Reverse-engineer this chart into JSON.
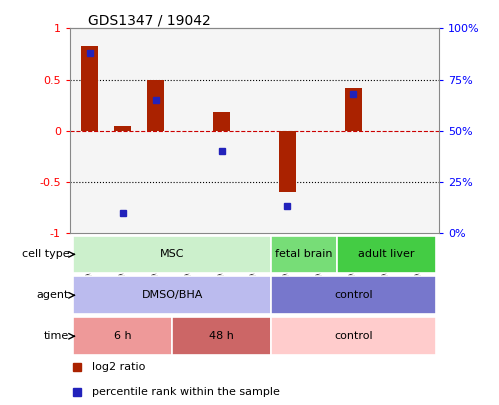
{
  "title": "GDS1347 / 19042",
  "samples": [
    "GSM60436",
    "GSM60437",
    "GSM60438",
    "GSM60440",
    "GSM60442",
    "GSM60444",
    "GSM60433",
    "GSM60434",
    "GSM60448",
    "GSM60450",
    "GSM60451"
  ],
  "log2_ratio": [
    0.83,
    0.05,
    0.5,
    0.0,
    0.18,
    0.0,
    -0.6,
    0.0,
    0.42,
    0.0,
    0.0
  ],
  "percentile": [
    88,
    10,
    65,
    null,
    40,
    null,
    13,
    null,
    68,
    null,
    null
  ],
  "ylim_left": [
    -1,
    1
  ],
  "ylim_right": [
    0,
    100
  ],
  "yticks_left": [
    -1,
    -0.5,
    0,
    0.5,
    1
  ],
  "yticks_right": [
    0,
    25,
    50,
    75,
    100
  ],
  "ytick_labels_left": [
    "-1",
    "-0.5",
    "0",
    "0.5",
    "1"
  ],
  "ytick_labels_right": [
    "0%",
    "25%",
    "50%",
    "75%",
    "100%"
  ],
  "hline_dotted": [
    0.5,
    -0.5
  ],
  "bar_color": "#aa2200",
  "dot_color": "#2222bb",
  "cell_type_groups": [
    {
      "label": "MSC",
      "start": 0,
      "end": 6,
      "color": "#ccf0cc"
    },
    {
      "label": "fetal brain",
      "start": 6,
      "end": 8,
      "color": "#77dd77"
    },
    {
      "label": "adult liver",
      "start": 8,
      "end": 11,
      "color": "#44cc44"
    }
  ],
  "agent_groups": [
    {
      "label": "DMSO/BHA",
      "start": 0,
      "end": 6,
      "color": "#bbbbee"
    },
    {
      "label": "control",
      "start": 6,
      "end": 11,
      "color": "#7777cc"
    }
  ],
  "time_groups": [
    {
      "label": "6 h",
      "start": 0,
      "end": 3,
      "color": "#ee9999"
    },
    {
      "label": "48 h",
      "start": 3,
      "end": 6,
      "color": "#cc6666"
    },
    {
      "label": "control",
      "start": 6,
      "end": 11,
      "color": "#ffcccc"
    }
  ],
  "row_labels": [
    "cell type",
    "agent",
    "time"
  ],
  "legend_items": [
    {
      "color": "#aa2200",
      "label": "log2 ratio"
    },
    {
      "color": "#2222bb",
      "label": "percentile rank within the sample"
    }
  ],
  "background_color": "#ffffff",
  "zero_line_color": "#cc0000"
}
